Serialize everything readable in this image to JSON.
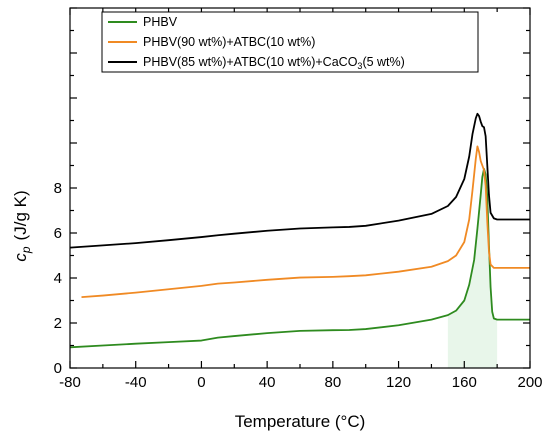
{
  "chart_data": {
    "type": "line",
    "title": "",
    "xlabel": "Temperature (°C)",
    "ylabel_main": "c",
    "ylabel_sub": "p",
    "ylabel_unit": "(J/g K)",
    "xlim": [
      -80,
      200
    ],
    "ylim": [
      0,
      16
    ],
    "xticks": [
      -80,
      -40,
      0,
      40,
      80,
      120,
      160,
      200
    ],
    "yticks_labeled": [
      0,
      2,
      4,
      6,
      8
    ],
    "yticks_unlabeled": [
      10,
      12,
      14,
      16
    ],
    "x_minor_step": 20,
    "grid": false,
    "legend_position": "top-left",
    "series": [
      {
        "name": "PHBV",
        "color": "#2e8b1f",
        "points": [
          [
            -80,
            0.92
          ],
          [
            -60,
            1.0
          ],
          [
            -40,
            1.08
          ],
          [
            -20,
            1.15
          ],
          [
            0,
            1.22
          ],
          [
            10,
            1.35
          ],
          [
            20,
            1.42
          ],
          [
            40,
            1.55
          ],
          [
            60,
            1.65
          ],
          [
            80,
            1.68
          ],
          [
            90,
            1.69
          ],
          [
            100,
            1.73
          ],
          [
            120,
            1.9
          ],
          [
            140,
            2.15
          ],
          [
            150,
            2.35
          ],
          [
            155,
            2.55
          ],
          [
            160,
            3.0
          ],
          [
            163,
            3.7
          ],
          [
            166,
            4.8
          ],
          [
            168,
            6.2
          ],
          [
            170,
            7.7
          ],
          [
            171,
            8.5
          ],
          [
            172,
            8.85
          ],
          [
            173,
            8.6
          ],
          [
            174,
            7.6
          ],
          [
            175,
            5.5
          ],
          [
            176,
            3.6
          ],
          [
            177,
            2.5
          ],
          [
            178,
            2.2
          ],
          [
            180,
            2.15
          ],
          [
            200,
            2.15
          ]
        ]
      },
      {
        "name": "PHBV(90 wt%)+ATBC(10 wt%)",
        "color": "#f08a24",
        "points": [
          [
            -73,
            3.15
          ],
          [
            -60,
            3.22
          ],
          [
            -40,
            3.35
          ],
          [
            -20,
            3.5
          ],
          [
            0,
            3.65
          ],
          [
            10,
            3.75
          ],
          [
            20,
            3.8
          ],
          [
            40,
            3.92
          ],
          [
            60,
            4.02
          ],
          [
            80,
            4.05
          ],
          [
            90,
            4.08
          ],
          [
            100,
            4.12
          ],
          [
            120,
            4.28
          ],
          [
            140,
            4.5
          ],
          [
            150,
            4.75
          ],
          [
            155,
            5.0
          ],
          [
            160,
            5.6
          ],
          [
            163,
            6.6
          ],
          [
            165,
            7.9
          ],
          [
            167,
            9.3
          ],
          [
            168,
            9.85
          ],
          [
            169,
            9.6
          ],
          [
            170,
            9.2
          ],
          [
            172,
            8.8
          ],
          [
            173,
            8.1
          ],
          [
            174,
            6.5
          ],
          [
            175,
            5.2
          ],
          [
            176,
            4.6
          ],
          [
            178,
            4.45
          ],
          [
            180,
            4.45
          ],
          [
            200,
            4.45
          ]
        ]
      },
      {
        "name": "PHBV(85 wt%)+ATBC(10 wt%)+CaCO3(5 wt%)",
        "color": "#000000",
        "points": [
          [
            -80,
            5.35
          ],
          [
            -60,
            5.45
          ],
          [
            -40,
            5.55
          ],
          [
            -20,
            5.68
          ],
          [
            0,
            5.82
          ],
          [
            10,
            5.9
          ],
          [
            20,
            5.97
          ],
          [
            40,
            6.1
          ],
          [
            60,
            6.2
          ],
          [
            80,
            6.25
          ],
          [
            90,
            6.27
          ],
          [
            100,
            6.32
          ],
          [
            120,
            6.55
          ],
          [
            140,
            6.85
          ],
          [
            150,
            7.2
          ],
          [
            155,
            7.6
          ],
          [
            160,
            8.4
          ],
          [
            163,
            9.4
          ],
          [
            165,
            10.4
          ],
          [
            167,
            11.1
          ],
          [
            168,
            11.3
          ],
          [
            169,
            11.2
          ],
          [
            170,
            10.95
          ],
          [
            171,
            10.75
          ],
          [
            172,
            10.7
          ],
          [
            173,
            10.3
          ],
          [
            174,
            9.0
          ],
          [
            175,
            7.7
          ],
          [
            176,
            6.9
          ],
          [
            178,
            6.65
          ],
          [
            180,
            6.6
          ],
          [
            200,
            6.6
          ]
        ]
      }
    ]
  },
  "legend": {
    "item1": "PHBV",
    "item2": "PHBV(90 wt%)+ATBC(10 wt%)",
    "item3_a": "PHBV(85 wt%)+ATBC(10 wt%)+CaCO",
    "item3_sub": "3",
    "item3_b": "(5 wt%)"
  }
}
